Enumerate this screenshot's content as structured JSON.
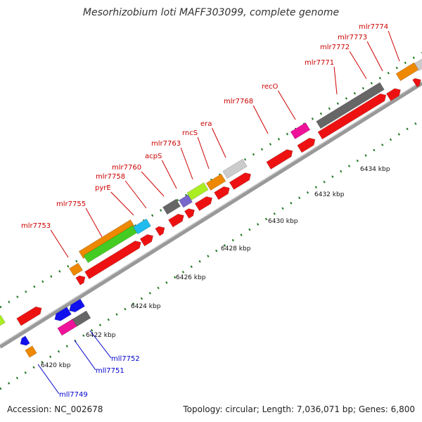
{
  "title": "Mesorhizobium loti MAFF303099, complete genome",
  "footer": {
    "accession": "Accession: NC_002678",
    "summary": "Topology: circular; Length: 7,036,071 bp; Genes: 6,800"
  },
  "colors": {
    "forward_label": "#cc0000",
    "reverse_label": "#0000cc",
    "backbone": "#999999",
    "tick": "#227722",
    "red": "#ee1111",
    "blue": "#1111ee",
    "magenta": "#ee1199",
    "gray_dark": "#666666",
    "gray_light": "#cccccc",
    "orange": "#ee8800",
    "green": "#44cc22",
    "lime": "#aaee22",
    "cyan": "#22bbee",
    "purple": "#7766cc"
  },
  "scale_ticks": [
    {
      "label": "6420 kbp"
    },
    {
      "label": "6422 kbp"
    },
    {
      "label": "6424 kbp"
    },
    {
      "label": "6426 kbp"
    },
    {
      "label": "6428 kbp"
    },
    {
      "label": "6430 kbp"
    },
    {
      "label": "6432 kbp"
    },
    {
      "label": "6434 kbp"
    }
  ],
  "forward_labels": [
    "mlr7753",
    "mlr7755",
    "pyrE",
    "mlr7758",
    "mlr7760",
    "acpS",
    "mlr7763",
    "rncS",
    "era",
    "mlr7768",
    "recO",
    "mlr7771",
    "mlr7772",
    "mlr7773",
    "mlr7774"
  ],
  "reverse_labels": [
    "mll7749",
    "mll7751",
    "mll7752"
  ]
}
